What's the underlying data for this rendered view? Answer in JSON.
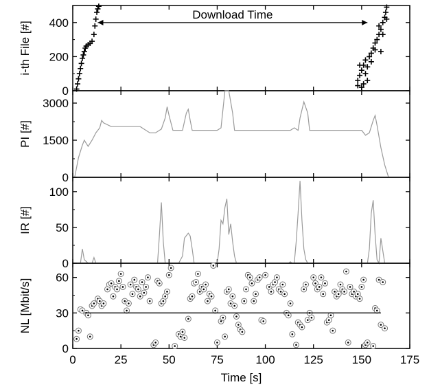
{
  "chart_data": [
    {
      "type": "scatter",
      "panel": "file",
      "ylabel": "i-th File [#]",
      "ylim": [
        0,
        500
      ],
      "yticks": [
        0,
        200,
        400
      ],
      "xlim": [
        0,
        175
      ],
      "annotation": {
        "text": "Download Time",
        "x_start": 13,
        "x_end": 153,
        "y": 440
      },
      "series": [
        {
          "marker": "plus",
          "points": [
            [
              2,
              10
            ],
            [
              2.5,
              40
            ],
            [
              3,
              70
            ],
            [
              3.5,
              100
            ],
            [
              4,
              130
            ],
            [
              4.5,
              160
            ],
            [
              5,
              190
            ],
            [
              5.5,
              210
            ],
            [
              6,
              230
            ],
            [
              6.5,
              250
            ],
            [
              7,
              262
            ],
            [
              8,
              270
            ],
            [
              9,
              278
            ],
            [
              10,
              290
            ],
            [
              11,
              330
            ],
            [
              11.5,
              380
            ],
            [
              12,
              420
            ],
            [
              12.5,
              460
            ],
            [
              13,
              480
            ],
            [
              13.5,
              495
            ],
            [
              148,
              60
            ],
            [
              149,
              90
            ],
            [
              150,
              120
            ],
            [
              151,
              150
            ],
            [
              152,
              180
            ],
            [
              153,
              140
            ],
            [
              151,
              40
            ],
            [
              150,
              20
            ],
            [
              152,
              100
            ],
            [
              154,
              200
            ],
            [
              155,
              220
            ],
            [
              156,
              250
            ],
            [
              157,
              240
            ],
            [
              158,
              300
            ],
            [
              159,
              330
            ],
            [
              160,
              360
            ],
            [
              161,
              400
            ],
            [
              162,
              430
            ],
            [
              162.5,
              460
            ],
            [
              163,
              490
            ],
            [
              157,
              280
            ],
            [
              159,
              380
            ],
            [
              161,
              330
            ],
            [
              155,
              170
            ],
            [
              160,
              230
            ],
            [
              163,
              420
            ],
            [
              148,
              30
            ],
            [
              153,
              60
            ],
            [
              149,
              150
            ]
          ]
        }
      ]
    },
    {
      "type": "line",
      "panel": "pi",
      "ylabel": "PI [#]",
      "ylim": [
        0,
        3500
      ],
      "yticks": [
        0,
        1500,
        3000
      ],
      "xlim": [
        0,
        175
      ],
      "series": [
        {
          "x": [
            1,
            3,
            5,
            6,
            8,
            10,
            12,
            14,
            15,
            16,
            20,
            25,
            30,
            35,
            40,
            43,
            46,
            48,
            49,
            50,
            52,
            57,
            59,
            60,
            61,
            62,
            65,
            70,
            75,
            77,
            79,
            81,
            83,
            84,
            86,
            90,
            100,
            110,
            113,
            115,
            117,
            118,
            120,
            122,
            123,
            125,
            130,
            140,
            150,
            152,
            154,
            156,
            157,
            158,
            160,
            162,
            164
          ],
          "y": [
            0,
            800,
            1300,
            1500,
            1250,
            1500,
            1800,
            2000,
            2300,
            2200,
            2050,
            2050,
            2050,
            2050,
            1800,
            1800,
            1950,
            2400,
            2850,
            2500,
            1900,
            1900,
            2600,
            2750,
            2300,
            1900,
            1900,
            1900,
            1900,
            2000,
            3500,
            3500,
            2600,
            1900,
            1900,
            1900,
            1900,
            1900,
            1900,
            2000,
            1900,
            2400,
            3050,
            2600,
            1900,
            1900,
            1900,
            1900,
            1900,
            1700,
            1800,
            2300,
            2500,
            2100,
            1200,
            500,
            0
          ]
        }
      ]
    },
    {
      "type": "line",
      "panel": "ir",
      "ylabel": "IR [#]",
      "ylim": [
        0,
        120
      ],
      "yticks": [
        0,
        50,
        100
      ],
      "xlim": [
        0,
        175
      ],
      "series": [
        {
          "x": [
            1,
            4,
            5,
            6,
            8,
            10,
            11,
            12,
            44,
            45,
            46,
            47,
            48,
            55,
            57,
            58,
            60,
            61,
            62,
            63,
            65,
            75,
            76,
            77,
            78,
            79,
            80,
            81,
            82,
            83,
            84,
            85,
            111,
            112,
            113,
            114,
            115,
            116,
            117,
            118,
            119,
            120,
            121,
            122,
            123,
            125,
            152,
            153,
            154,
            155,
            156,
            157,
            158,
            159,
            160,
            162
          ],
          "y": [
            0,
            0,
            20,
            5,
            0,
            0,
            8,
            0,
            0,
            40,
            85,
            30,
            0,
            0,
            10,
            35,
            42,
            38,
            20,
            0,
            0,
            0,
            20,
            60,
            55,
            78,
            90,
            40,
            55,
            30,
            10,
            0,
            0,
            0,
            2,
            0,
            0,
            30,
            70,
            115,
            60,
            20,
            5,
            0,
            0,
            0,
            0,
            0,
            20,
            70,
            88,
            40,
            5,
            0,
            35,
            0
          ]
        }
      ]
    },
    {
      "type": "scatter",
      "panel": "nl",
      "ylabel": "NL [Mbit/s]",
      "ylim": [
        0,
        72
      ],
      "yticks": [
        0,
        30,
        60
      ],
      "xlim": [
        0,
        175
      ],
      "xticks": [
        0,
        25,
        50,
        75,
        100,
        125,
        150,
        175
      ],
      "xlabel": "Time [s]",
      "reference_line": {
        "y": 30,
        "x_start": 6,
        "x_end": 160
      },
      "series": [
        {
          "marker": "circle",
          "points": [
            [
              2,
              8
            ],
            [
              3,
              15
            ],
            [
              4,
              33
            ],
            [
              5,
              32
            ],
            [
              7,
              30
            ],
            [
              8,
              28
            ],
            [
              9,
              10
            ],
            [
              10,
              36
            ],
            [
              11,
              38
            ],
            [
              13,
              42
            ],
            [
              14,
              40
            ],
            [
              15,
              36
            ],
            [
              16,
              38
            ],
            [
              18,
              50
            ],
            [
              19,
              54
            ],
            [
              20,
              55
            ],
            [
              21,
              44
            ],
            [
              22,
              52
            ],
            [
              23,
              50
            ],
            [
              24,
              57
            ],
            [
              25,
              63
            ],
            [
              26,
              52
            ],
            [
              27,
              40
            ],
            [
              28,
              32
            ],
            [
              29,
              38
            ],
            [
              30,
              54
            ],
            [
              31,
              46
            ],
            [
              32,
              58
            ],
            [
              33,
              52
            ],
            [
              34,
              50
            ],
            [
              35,
              44
            ],
            [
              36,
              56
            ],
            [
              37,
              47
            ],
            [
              38,
              52
            ],
            [
              39,
              60
            ],
            [
              40,
              40
            ],
            [
              42,
              3
            ],
            [
              43,
              5
            ],
            [
              44,
              57
            ],
            [
              45,
              55
            ],
            [
              46,
              38
            ],
            [
              47,
              40
            ],
            [
              48,
              44
            ],
            [
              49,
              48
            ],
            [
              50,
              62
            ],
            [
              51,
              68
            ],
            [
              53,
              2
            ],
            [
              55,
              12
            ],
            [
              56,
              10
            ],
            [
              57,
              14
            ],
            [
              58,
              9
            ],
            [
              60,
              25
            ],
            [
              61,
              42
            ],
            [
              62,
              44
            ],
            [
              63,
              55
            ],
            [
              64,
              56
            ],
            [
              65,
              63
            ],
            [
              66,
              48
            ],
            [
              67,
              52
            ],
            [
              68,
              50
            ],
            [
              69,
              54
            ],
            [
              70,
              40
            ],
            [
              71,
              46
            ],
            [
              72,
              44
            ],
            [
              73,
              70
            ],
            [
              74,
              32
            ],
            [
              75,
              5
            ],
            [
              77,
              23
            ],
            [
              78,
              26
            ],
            [
              79,
              10
            ],
            [
              80,
              48
            ],
            [
              81,
              50
            ],
            [
              82,
              38
            ],
            [
              83,
              44
            ],
            [
              84,
              36
            ],
            [
              85,
              27
            ],
            [
              86,
              20
            ],
            [
              87,
              16
            ],
            [
              88,
              14
            ],
            [
              89,
              40
            ],
            [
              90,
              50
            ],
            [
              91,
              62
            ],
            [
              92,
              60
            ],
            [
              93,
              55
            ],
            [
              94,
              40
            ],
            [
              95,
              46
            ],
            [
              96,
              58
            ],
            [
              97,
              60
            ],
            [
              98,
              24
            ],
            [
              99,
              23
            ],
            [
              100,
              62
            ],
            [
              102,
              52
            ],
            [
              103,
              48
            ],
            [
              104,
              54
            ],
            [
              105,
              56
            ],
            [
              106,
              60
            ],
            [
              107,
              50
            ],
            [
              108,
              48
            ],
            [
              109,
              54
            ],
            [
              110,
              46
            ],
            [
              111,
              30
            ],
            [
              112,
              28
            ],
            [
              113,
              38
            ],
            [
              114,
              12
            ],
            [
              116,
              3
            ],
            [
              117,
              22
            ],
            [
              118,
              20
            ],
            [
              119,
              18
            ],
            [
              120,
              50
            ],
            [
              121,
              54
            ],
            [
              122,
              24
            ],
            [
              123,
              30
            ],
            [
              124,
              26
            ],
            [
              125,
              60
            ],
            [
              126,
              55
            ],
            [
              127,
              50
            ],
            [
              128,
              52
            ],
            [
              129,
              60
            ],
            [
              130,
              46
            ],
            [
              131,
              55
            ],
            [
              132,
              22
            ],
            [
              133,
              24
            ],
            [
              134,
              28
            ],
            [
              135,
              15
            ],
            [
              136,
              48
            ],
            [
              137,
              44
            ],
            [
              138,
              46
            ],
            [
              139,
              54
            ],
            [
              140,
              50
            ],
            [
              141,
              48
            ],
            [
              142,
              65
            ],
            [
              143,
              5
            ],
            [
              144,
              52
            ],
            [
              145,
              46
            ],
            [
              146,
              48
            ],
            [
              147,
              44
            ],
            [
              148,
              46
            ],
            [
              149,
              42
            ],
            [
              150,
              52
            ],
            [
              151,
              58
            ],
            [
              152,
              3
            ],
            [
              153,
              5
            ],
            [
              156,
              2
            ],
            [
              157,
              34
            ],
            [
              158,
              32
            ],
            [
              159,
              58
            ],
            [
              160,
              20
            ],
            [
              161,
              56
            ],
            [
              162,
              17
            ]
          ]
        }
      ]
    }
  ]
}
